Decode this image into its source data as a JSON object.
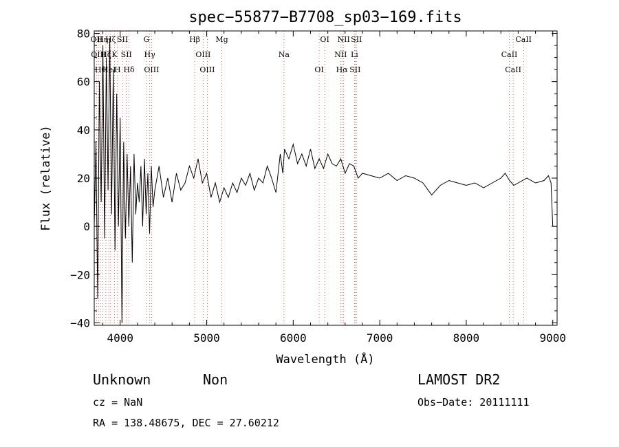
{
  "chart_data": {
    "type": "line",
    "title": "spec−55877−B7708_sp03−169.fits",
    "xlabel": "Wavelength (Å)",
    "ylabel": "Flux (relative)",
    "xlim": [
      3700,
      9050
    ],
    "ylim": [
      -41,
      81
    ],
    "x_ticks": [
      4000,
      5000,
      6000,
      7000,
      8000,
      9000
    ],
    "y_ticks": [
      -40,
      -20,
      0,
      20,
      40,
      60,
      80
    ],
    "x_tick_labels": [
      "4000",
      "5000",
      "6000",
      "7000",
      "8000",
      "9000"
    ],
    "y_tick_labels": [
      "−40",
      "−20",
      "0",
      "20",
      "40",
      "60",
      "80"
    ],
    "grid": false,
    "series": [
      {
        "color": "#000000",
        "x": [
          3700,
          3720,
          3740,
          3760,
          3780,
          3800,
          3820,
          3840,
          3860,
          3880,
          3900,
          3920,
          3940,
          3960,
          3980,
          4000,
          4020,
          4040,
          4060,
          4080,
          4100,
          4120,
          4140,
          4160,
          4180,
          4200,
          4220,
          4240,
          4260,
          4280,
          4300,
          4320,
          4340,
          4360,
          4380,
          4400,
          4450,
          4500,
          4550,
          4600,
          4650,
          4700,
          4750,
          4800,
          4850,
          4900,
          4950,
          5000,
          5050,
          5100,
          5150,
          5200,
          5250,
          5300,
          5350,
          5400,
          5450,
          5500,
          5550,
          5600,
          5650,
          5700,
          5750,
          5800,
          5850,
          5880,
          5900,
          5950,
          6000,
          6050,
          6100,
          6150,
          6200,
          6250,
          6300,
          6350,
          6400,
          6450,
          6500,
          6550,
          6600,
          6650,
          6700,
          6750,
          6800,
          6900,
          7000,
          7100,
          7200,
          7300,
          7400,
          7500,
          7600,
          7700,
          7800,
          7900,
          8000,
          8100,
          8200,
          8300,
          8400,
          8450,
          8500,
          8550,
          8600,
          8700,
          8800,
          8900,
          8950,
          8980,
          9000
        ],
        "values": [
          0,
          35,
          -30,
          60,
          10,
          75,
          -5,
          70,
          15,
          78,
          5,
          65,
          -10,
          55,
          0,
          45,
          -40,
          35,
          -5,
          30,
          0,
          25,
          -15,
          30,
          5,
          18,
          10,
          25,
          0,
          28,
          5,
          22,
          -3,
          25,
          8,
          15,
          25,
          12,
          20,
          10,
          22,
          15,
          18,
          25,
          20,
          28,
          18,
          22,
          12,
          18,
          10,
          16,
          12,
          18,
          14,
          20,
          17,
          22,
          15,
          20,
          18,
          25,
          20,
          14,
          30,
          22,
          32,
          28,
          34,
          26,
          30,
          25,
          32,
          24,
          28,
          24,
          30,
          26,
          25,
          28,
          22,
          26,
          25,
          20,
          22,
          21,
          20,
          22,
          19,
          21,
          20,
          18,
          13,
          17,
          19,
          18,
          17,
          18,
          16,
          18,
          20,
          22,
          19,
          17,
          18,
          20,
          18,
          19,
          21,
          18,
          0
        ]
      }
    ],
    "line_markers": [
      {
        "x": 3727,
        "label": "OII"
      },
      {
        "x": 3750,
        "label": "OIII"
      },
      {
        "x": 3771,
        "label": "Hθ"
      },
      {
        "x": 3798,
        "label": "Hη"
      },
      {
        "x": 3835,
        "label": "Hζ"
      },
      {
        "x": 3869,
        "label": "HeI"
      },
      {
        "x": 3889,
        "label": "Hζ"
      },
      {
        "x": 3934,
        "label": "K"
      },
      {
        "x": 3969,
        "label": "H"
      },
      {
        "x": 4027,
        "label": "SII"
      },
      {
        "x": 4072,
        "label": "SII"
      },
      {
        "x": 4102,
        "label": "Hδ"
      },
      {
        "x": 4304,
        "label": "G"
      },
      {
        "x": 4341,
        "label": "Hγ"
      },
      {
        "x": 4363,
        "label": "OIII"
      },
      {
        "x": 4861,
        "label": "Hβ"
      },
      {
        "x": 4959,
        "label": "OIII"
      },
      {
        "x": 5007,
        "label": "OIII"
      },
      {
        "x": 5175,
        "label": "Mg"
      },
      {
        "x": 5893,
        "label": "Na"
      },
      {
        "x": 6300,
        "label": "OI"
      },
      {
        "x": 6364,
        "label": "OI"
      },
      {
        "x": 6548,
        "label": "NII"
      },
      {
        "x": 6563,
        "label": "Hα"
      },
      {
        "x": 6583,
        "label": "NII"
      },
      {
        "x": 6708,
        "label": "Li"
      },
      {
        "x": 6716,
        "label": "SII"
      },
      {
        "x": 6731,
        "label": "SII"
      },
      {
        "x": 8498,
        "label": "CaII"
      },
      {
        "x": 8542,
        "label": "CaII"
      },
      {
        "x": 8662,
        "label": "CaII"
      }
    ]
  },
  "annotations": {
    "object_class": "Unknown",
    "subclass": "Non",
    "survey": "LAMOST DR2",
    "redshift": "cz = NaN",
    "obs_date": "Obs−Date: 20111111",
    "coords": "RA = 138.48675, DEC =  27.60212"
  }
}
